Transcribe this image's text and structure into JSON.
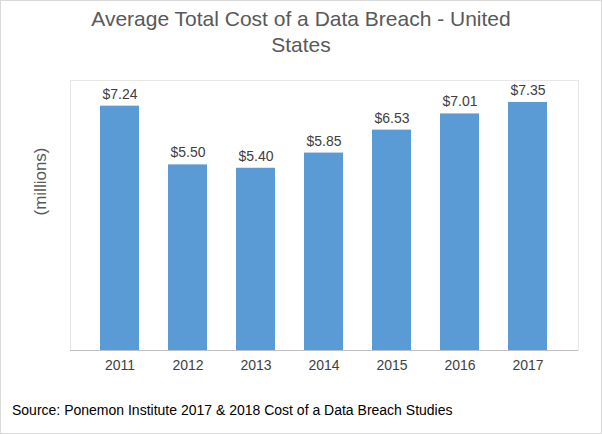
{
  "chart_data": {
    "type": "bar",
    "title": "Average Total Cost of a Data Breach - United States",
    "y_label": "(millions)",
    "caption": "Source: Ponemon Institute 2017 & 2018 Cost of a Data Breach Studies",
    "categories": [
      "2011",
      "2012",
      "2013",
      "2014",
      "2015",
      "2016",
      "2017"
    ],
    "values": [
      7.24,
      5.5,
      5.4,
      5.85,
      6.53,
      7.01,
      7.35
    ],
    "value_labels": [
      "$7.24",
      "$5.50",
      "$5.40",
      "$5.85",
      "$6.53",
      "$7.01",
      "$7.35"
    ],
    "color": "#5b9bd5",
    "ylim": [
      0,
      8
    ],
    "grid": false,
    "data_labels": true,
    "tick_labels": "x"
  }
}
